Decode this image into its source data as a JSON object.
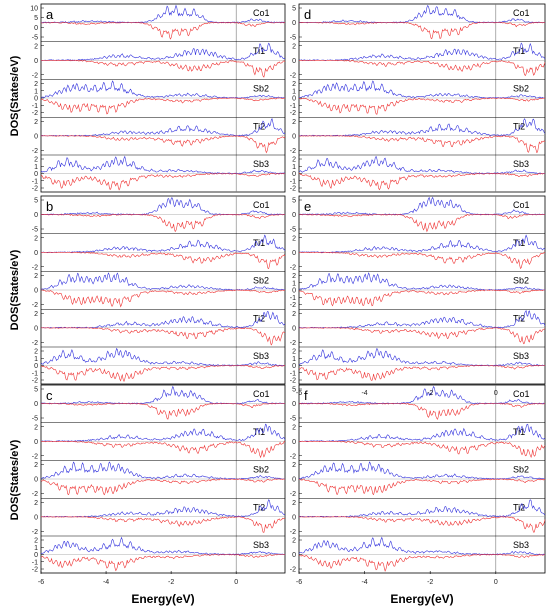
{
  "chart_data": {
    "type": "line",
    "xlabel": "Energy(eV)",
    "ylabel": "DOS(States/eV)",
    "xlim": [
      -6,
      1.5
    ],
    "x_ticks": [
      "-6",
      "-4",
      "-2",
      "0"
    ],
    "fermi_level": 0,
    "series_colors": {
      "spin_up": "#3333dd",
      "spin_down": "#ee3333"
    },
    "panels": [
      {
        "id": "a",
        "label": "a",
        "yticks_left": [
          "10",
          "5",
          "0",
          "-5"
        ],
        "subplots": [
          {
            "element": "Co1",
            "yticks": [
              "10",
              "5",
              "0",
              "-5"
            ]
          },
          {
            "element": "Ti1",
            "yticks": [
              "2",
              "0",
              "-2"
            ]
          },
          {
            "element": "Sb2",
            "yticks": [
              "2",
              "1",
              "0",
              "-1",
              "-2"
            ]
          },
          {
            "element": "Ti2",
            "yticks": [
              "2",
              "0",
              "-2"
            ]
          },
          {
            "element": "Sb3",
            "yticks": [
              "2",
              "1",
              "0",
              "-1",
              "-2"
            ]
          }
        ]
      },
      {
        "id": "b",
        "label": "b",
        "subplots": [
          {
            "element": "Co1",
            "yticks": [
              "5",
              "0",
              "-5"
            ]
          },
          {
            "element": "Ti1",
            "yticks": [
              "2",
              "0",
              "-2"
            ]
          },
          {
            "element": "Sb2",
            "yticks": [
              "2",
              "0",
              "-2"
            ]
          },
          {
            "element": "Ti2",
            "yticks": [
              "2",
              "0",
              "-2"
            ]
          },
          {
            "element": "Sb3",
            "yticks": [
              "2",
              "1",
              "0",
              "-1",
              "-2"
            ]
          }
        ]
      },
      {
        "id": "c",
        "label": "c",
        "subplots": [
          {
            "element": "Co1",
            "yticks": [
              "5",
              "0",
              "-5"
            ]
          },
          {
            "element": "Ti1",
            "yticks": [
              "2",
              "0",
              "-2"
            ]
          },
          {
            "element": "Sb2",
            "yticks": [
              "2",
              "0",
              "-2"
            ]
          },
          {
            "element": "Ti2",
            "yticks": [
              "2",
              "0",
              "-2"
            ]
          },
          {
            "element": "Sb3",
            "yticks": [
              "2",
              "1",
              "0",
              "-1",
              "-2"
            ]
          }
        ]
      },
      {
        "id": "d",
        "label": "d",
        "subplots": [
          {
            "element": "Co1",
            "yticks": [
              "5",
              "0",
              "-5"
            ]
          },
          {
            "element": "Ti1",
            "yticks": [
              "2",
              "0",
              "-2"
            ]
          },
          {
            "element": "Sb2",
            "yticks": [
              "2",
              "1",
              "0",
              "-1",
              "-2"
            ]
          },
          {
            "element": "Ti2",
            "yticks": [
              "2",
              "0",
              "-2"
            ]
          },
          {
            "element": "Sb3",
            "yticks": [
              "2",
              "1",
              "0",
              "-1",
              "-2"
            ]
          }
        ]
      },
      {
        "id": "e",
        "label": "e",
        "subplots": [
          {
            "element": "Co1",
            "yticks": [
              "5",
              "0",
              "-5"
            ]
          },
          {
            "element": "Ti1",
            "yticks": [
              "2",
              "0",
              "-2"
            ]
          },
          {
            "element": "Sb2",
            "yticks": [
              "2",
              "1",
              "0",
              "-1",
              "-2"
            ]
          },
          {
            "element": "Ti2",
            "yticks": [
              "2",
              "0",
              "-2"
            ]
          },
          {
            "element": "Sb3",
            "yticks": [
              "2",
              "1",
              "0",
              "-1",
              "-2"
            ]
          }
        ]
      },
      {
        "id": "f",
        "label": "f",
        "top_axis_ticks": [
          "-6",
          "-4",
          "-2",
          "0"
        ],
        "subplots": [
          {
            "element": "Co1",
            "yticks": [
              "5",
              "0",
              "-5"
            ]
          },
          {
            "element": "Ti1",
            "yticks": [
              "2",
              "0",
              "-2"
            ]
          },
          {
            "element": "Sb2",
            "yticks": [
              "2",
              "0",
              "-2"
            ]
          },
          {
            "element": "Ti2",
            "yticks": [
              "2",
              "0",
              "-2"
            ]
          },
          {
            "element": "Sb3",
            "yticks": [
              "2",
              "0",
              "-2"
            ]
          }
        ]
      }
    ]
  }
}
